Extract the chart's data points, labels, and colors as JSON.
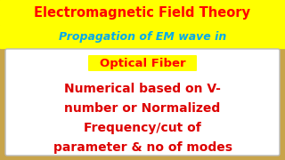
{
  "bg_color": "#c8a44a",
  "top_banner1_color": "#ffff00",
  "top_banner2_color": "#ffff00",
  "top_text1": "Electromagnetic Field Theory",
  "top_text1_color": "#ff0000",
  "top_text2": "Propagation of EM wave in",
  "top_text2_color": "#00aaee",
  "white_box_color": "#ffffff",
  "white_box_edgecolor": "#bbbbbb",
  "label_bg_color": "#ffff00",
  "label_text": "Optical Fiber",
  "label_text_color": "#ff0000",
  "main_text_line1": "Numerical based on V-",
  "main_text_line2": "number or Normalized",
  "main_text_line3": "Frequency/cut of",
  "main_text_line4": "parameter & no of modes",
  "main_text_color": "#dd0000",
  "title_fontsize": 10.5,
  "subtitle_fontsize": 9.0,
  "label_fontsize": 9.5,
  "main_fontsize": 10.0
}
